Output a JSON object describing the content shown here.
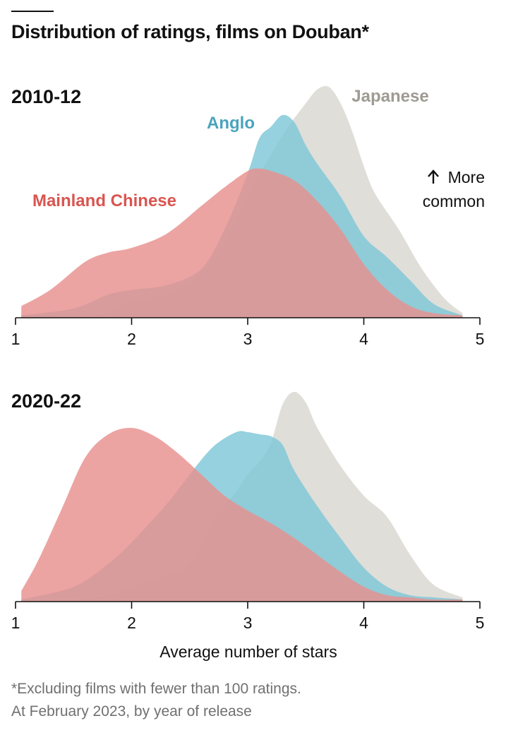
{
  "title": "Distribution of ratings, films on Douban*",
  "footnote": [
    "*Excluding films with fewer than 100 ratings.",
    "At February 2023, by year of release"
  ],
  "colors": {
    "mainland_chinese": "#e8908e",
    "anglo": "#7fc7d8",
    "japanese": "#d8d7d0",
    "mainland_chinese_label": "#d95550",
    "anglo_label": "#4aa3bd",
    "japanese_label": "#9e9b92",
    "axis": "#111111"
  },
  "chart_data": [
    {
      "type": "area",
      "panel_label": "2010-12",
      "xlabel": "",
      "ylabel": "",
      "xlim": [
        1,
        4.85
      ],
      "ylim": [
        0,
        1
      ],
      "x_ticks": [
        1,
        2,
        3,
        4,
        5
      ],
      "x_tick_labels": [
        "1",
        "2",
        "3",
        "4",
        "5"
      ],
      "annotation": [
        "More",
        "common"
      ],
      "annotation_icon": "up-arrow-icon",
      "series": [
        {
          "name": "Japanese",
          "color_key": "japanese",
          "x": [
            1.05,
            1.5,
            1.8,
            2.0,
            2.3,
            2.6,
            2.8,
            3.0,
            3.2,
            3.35,
            3.5,
            3.6,
            3.7,
            3.8,
            3.9,
            4.0,
            4.1,
            4.3,
            4.5,
            4.7,
            4.85
          ],
          "y": [
            0.01,
            0.01,
            0.02,
            0.07,
            0.1,
            0.19,
            0.32,
            0.52,
            0.7,
            0.82,
            0.92,
            0.98,
            0.99,
            0.92,
            0.8,
            0.65,
            0.53,
            0.38,
            0.21,
            0.08,
            0.02
          ]
        },
        {
          "name": "Anglo",
          "color_key": "anglo",
          "x": [
            1.05,
            1.5,
            1.8,
            2.0,
            2.3,
            2.6,
            2.8,
            3.0,
            3.1,
            3.2,
            3.3,
            3.4,
            3.5,
            3.6,
            3.8,
            4.0,
            4.2,
            4.4,
            4.6,
            4.85
          ],
          "y": [
            0.01,
            0.04,
            0.1,
            0.12,
            0.14,
            0.21,
            0.38,
            0.62,
            0.77,
            0.82,
            0.87,
            0.84,
            0.74,
            0.66,
            0.52,
            0.35,
            0.26,
            0.16,
            0.06,
            0.01
          ]
        },
        {
          "name": "Mainland Chinese",
          "color_key": "mainland_chinese",
          "x": [
            1.05,
            1.3,
            1.6,
            1.8,
            2.0,
            2.3,
            2.6,
            2.8,
            3.0,
            3.1,
            3.2,
            3.4,
            3.6,
            3.8,
            4.0,
            4.2,
            4.4,
            4.6,
            4.85
          ],
          "y": [
            0.05,
            0.12,
            0.24,
            0.28,
            0.3,
            0.36,
            0.48,
            0.56,
            0.63,
            0.64,
            0.63,
            0.59,
            0.5,
            0.38,
            0.23,
            0.12,
            0.05,
            0.02,
            0.01
          ]
        }
      ]
    },
    {
      "type": "area",
      "panel_label": "2020-22",
      "xlabel": "Average number of stars",
      "ylabel": "",
      "xlim": [
        1,
        4.85
      ],
      "ylim": [
        0,
        1
      ],
      "x_ticks": [
        1,
        2,
        3,
        4,
        5
      ],
      "x_tick_labels": [
        "1",
        "2",
        "3",
        "4",
        "5"
      ],
      "series": [
        {
          "name": "Japanese",
          "color_key": "japanese",
          "x": [
            1.05,
            1.5,
            1.8,
            2.0,
            2.3,
            2.5,
            2.7,
            2.9,
            3.0,
            3.1,
            3.2,
            3.3,
            3.4,
            3.5,
            3.6,
            3.8,
            4.0,
            4.2,
            4.4,
            4.6,
            4.85
          ],
          "y": [
            0.01,
            0.01,
            0.03,
            0.07,
            0.12,
            0.18,
            0.38,
            0.52,
            0.6,
            0.66,
            0.75,
            0.93,
            0.99,
            0.94,
            0.82,
            0.64,
            0.5,
            0.4,
            0.22,
            0.08,
            0.02
          ]
        },
        {
          "name": "Anglo",
          "color_key": "anglo",
          "x": [
            1.05,
            1.5,
            1.8,
            2.0,
            2.3,
            2.5,
            2.7,
            2.9,
            3.0,
            3.1,
            3.2,
            3.3,
            3.4,
            3.6,
            3.8,
            4.0,
            4.2,
            4.4,
            4.6,
            4.85
          ],
          "y": [
            0.01,
            0.07,
            0.18,
            0.28,
            0.46,
            0.6,
            0.73,
            0.8,
            0.8,
            0.79,
            0.78,
            0.74,
            0.62,
            0.45,
            0.3,
            0.16,
            0.07,
            0.03,
            0.02,
            0.01
          ]
        },
        {
          "name": "Mainland Chinese",
          "color_key": "mainland_chinese",
          "x": [
            1.05,
            1.2,
            1.4,
            1.6,
            1.8,
            2.0,
            2.2,
            2.4,
            2.6,
            2.8,
            3.0,
            3.2,
            3.4,
            3.6,
            3.8,
            4.0,
            4.2,
            4.4,
            4.6,
            4.85
          ],
          "y": [
            0.05,
            0.2,
            0.44,
            0.68,
            0.79,
            0.82,
            0.78,
            0.7,
            0.6,
            0.5,
            0.43,
            0.37,
            0.3,
            0.22,
            0.14,
            0.07,
            0.03,
            0.02,
            0.01,
            0.01
          ]
        }
      ]
    }
  ]
}
